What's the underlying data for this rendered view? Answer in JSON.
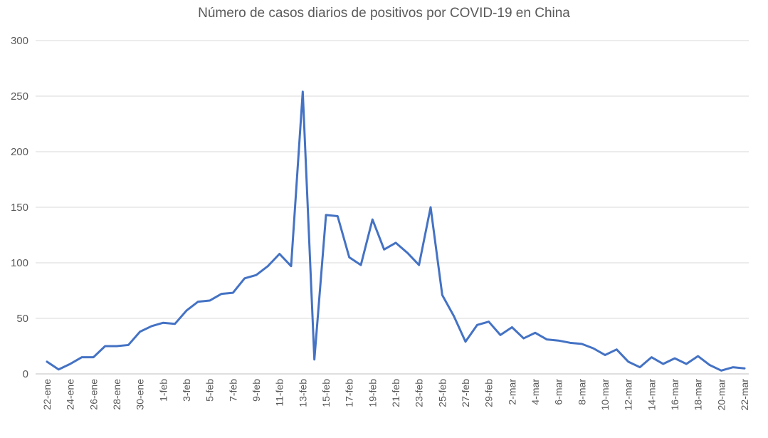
{
  "chart_data": {
    "type": "line",
    "title": "Número de casos diarios de positivos por COVID-19 en China",
    "xlabel": "",
    "ylabel": "",
    "ylim": [
      0,
      300
    ],
    "yticks": [
      0,
      50,
      100,
      150,
      200,
      250,
      300
    ],
    "grid": true,
    "legend": "none",
    "colors": {
      "series": "#4472c4",
      "grid": "#d9d9d9",
      "text": "#595959"
    },
    "x": [
      "22-ene",
      "23-ene",
      "24-ene",
      "25-ene",
      "26-ene",
      "27-ene",
      "28-ene",
      "29-ene",
      "30-ene",
      "31-ene",
      "1-feb",
      "2-feb",
      "3-feb",
      "4-feb",
      "5-feb",
      "6-feb",
      "7-feb",
      "8-feb",
      "9-feb",
      "10-feb",
      "11-feb",
      "12-feb",
      "13-feb",
      "14-feb",
      "15-feb",
      "16-feb",
      "17-feb",
      "18-feb",
      "19-feb",
      "20-feb",
      "21-feb",
      "22-feb",
      "23-feb",
      "24-feb",
      "25-feb",
      "26-feb",
      "27-feb",
      "28-feb",
      "29-feb",
      "1-mar",
      "2-mar",
      "3-mar",
      "4-mar",
      "5-mar",
      "6-mar",
      "7-mar",
      "8-mar",
      "9-mar",
      "10-mar",
      "11-mar",
      "12-mar",
      "13-mar",
      "14-mar",
      "15-mar",
      "16-mar",
      "17-mar",
      "18-mar",
      "19-mar",
      "20-mar",
      "21-mar",
      "22-mar"
    ],
    "x_tick_labels": [
      "22-ene",
      "24-ene",
      "26-ene",
      "28-ene",
      "30-ene",
      "1-feb",
      "3-feb",
      "5-feb",
      "7-feb",
      "9-feb",
      "11-feb",
      "13-feb",
      "15-feb",
      "17-feb",
      "19-feb",
      "21-feb",
      "23-feb",
      "25-feb",
      "27-feb",
      "29-feb",
      "2-mar",
      "4-mar",
      "6-mar",
      "8-mar",
      "10-mar",
      "12-mar",
      "14-mar",
      "16-mar",
      "18-mar",
      "20-mar",
      "22-mar"
    ],
    "series": [
      {
        "values": [
          11,
          4,
          9,
          15,
          15,
          25,
          25,
          26,
          38,
          43,
          46,
          45,
          57,
          65,
          66,
          72,
          73,
          86,
          89,
          97,
          108,
          97,
          254,
          13,
          143,
          142,
          105,
          98,
          139,
          112,
          118,
          109,
          98,
          150,
          71,
          52,
          29,
          44,
          47,
          35,
          42,
          32,
          37,
          31,
          30,
          28,
          27,
          23,
          17,
          22,
          11,
          6,
          15,
          9,
          14,
          9,
          16,
          8,
          3,
          6,
          5
        ]
      }
    ]
  }
}
